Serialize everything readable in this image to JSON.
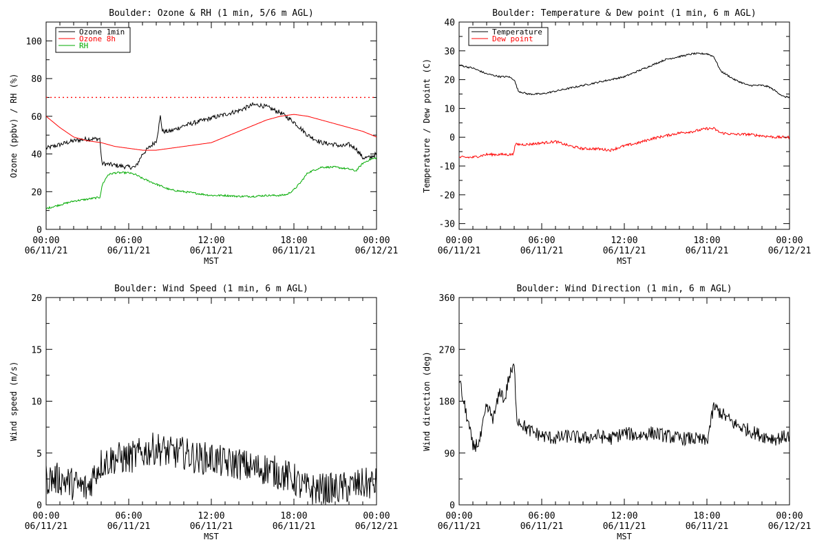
{
  "chart_data": [
    {
      "type": "line",
      "title": "Boulder: Ozone & RH (1 min, 5/6 m AGL)",
      "xlabel": "MST",
      "ylabel": "Ozone (ppbv) / RH (%)",
      "xlim": [
        0,
        24
      ],
      "ylim": [
        0,
        110
      ],
      "yticks": [
        0,
        20,
        40,
        60,
        80,
        100
      ],
      "xticks": [
        0,
        6,
        12,
        18,
        24
      ],
      "xtick_labels": [
        [
          "00:00",
          "06/11/21"
        ],
        [
          "06:00",
          "06/11/21"
        ],
        [
          "12:00",
          "06/11/21"
        ],
        [
          "18:00",
          "06/11/21"
        ],
        [
          "00:00",
          "06/12/21"
        ]
      ],
      "legend_position": "top-left",
      "reference_line": {
        "y": 70,
        "color": "#ff0000",
        "style": "dotted"
      },
      "series": [
        {
          "name": "Ozone 1min",
          "color": "#000000",
          "noise": 1.2,
          "points": [
            [
              0,
              43
            ],
            [
              1,
              45
            ],
            [
              2,
              47
            ],
            [
              3,
              48
            ],
            [
              3.9,
              48
            ],
            [
              4.05,
              35
            ],
            [
              5,
              34
            ],
            [
              6,
              33
            ],
            [
              6.5,
              33
            ],
            [
              7,
              40
            ],
            [
              8,
              47
            ],
            [
              8.15,
              53
            ],
            [
              8.3,
              60
            ],
            [
              8.45,
              52
            ],
            [
              9,
              52
            ],
            [
              10,
              55
            ],
            [
              11,
              57
            ],
            [
              12,
              59
            ],
            [
              13,
              61
            ],
            [
              14,
              63
            ],
            [
              15,
              66
            ],
            [
              15.5,
              66
            ],
            [
              16,
              65
            ],
            [
              17,
              62
            ],
            [
              18,
              57
            ],
            [
              19,
              50
            ],
            [
              20,
              46
            ],
            [
              21,
              45
            ],
            [
              21.5,
              44
            ],
            [
              22,
              45
            ],
            [
              22.5,
              43
            ],
            [
              23,
              38
            ],
            [
              23.5,
              38
            ],
            [
              24,
              40
            ]
          ]
        },
        {
          "name": "Ozone 8h",
          "color": "#ff0000",
          "noise": 0,
          "points": [
            [
              0,
              60
            ],
            [
              1,
              54
            ],
            [
              2,
              49
            ],
            [
              3,
              47
            ],
            [
              4,
              46
            ],
            [
              5,
              44
            ],
            [
              6,
              43
            ],
            [
              7,
              42
            ],
            [
              8,
              42
            ],
            [
              9,
              43
            ],
            [
              10,
              44
            ],
            [
              11,
              45
            ],
            [
              12,
              46
            ],
            [
              13,
              49
            ],
            [
              14,
              52
            ],
            [
              15,
              55
            ],
            [
              16,
              58
            ],
            [
              17,
              60
            ],
            [
              18,
              61
            ],
            [
              19,
              60
            ],
            [
              20,
              58
            ],
            [
              21,
              56
            ],
            [
              22,
              54
            ],
            [
              23,
              52
            ],
            [
              24,
              49
            ]
          ]
        },
        {
          "name": "RH",
          "color": "#00aa00",
          "noise": 0.5,
          "points": [
            [
              0,
              11
            ],
            [
              1,
              13
            ],
            [
              2,
              15
            ],
            [
              3,
              16
            ],
            [
              3.9,
              17
            ],
            [
              4.1,
              24
            ],
            [
              4.5,
              29
            ],
            [
              5,
              30
            ],
            [
              6,
              30
            ],
            [
              6.5,
              29
            ],
            [
              7,
              27
            ],
            [
              8,
              24
            ],
            [
              9,
              21
            ],
            [
              10,
              20
            ],
            [
              11,
              19
            ],
            [
              12,
              18
            ],
            [
              13,
              18
            ],
            [
              14,
              17.5
            ],
            [
              15,
              17.5
            ],
            [
              16,
              18
            ],
            [
              17,
              18
            ],
            [
              17.5,
              18.5
            ],
            [
              18,
              21
            ],
            [
              18.5,
              25
            ],
            [
              19,
              30
            ],
            [
              20,
              33
            ],
            [
              21,
              33
            ],
            [
              22,
              32
            ],
            [
              22.5,
              31
            ],
            [
              23,
              35
            ],
            [
              23.5,
              37
            ],
            [
              24,
              38
            ]
          ]
        }
      ]
    },
    {
      "type": "line",
      "title": "Boulder: Temperature & Dew point (1 min, 6 m AGL)",
      "xlabel": "MST",
      "ylabel": "Temperature / Dew point (C)",
      "xlim": [
        0,
        24
      ],
      "ylim": [
        -32,
        40
      ],
      "yticks": [
        -30,
        -20,
        -10,
        0,
        10,
        20,
        30,
        40
      ],
      "xticks": [
        0,
        6,
        12,
        18,
        24
      ],
      "xtick_labels": [
        [
          "00:00",
          "06/11/21"
        ],
        [
          "06:00",
          "06/11/21"
        ],
        [
          "12:00",
          "06/11/21"
        ],
        [
          "18:00",
          "06/11/21"
        ],
        [
          "00:00",
          "06/12/21"
        ]
      ],
      "legend_position": "top-left",
      "series": [
        {
          "name": "Temperature",
          "color": "#000000",
          "noise": 0.3,
          "points": [
            [
              0,
              25
            ],
            [
              1,
              24
            ],
            [
              2,
              22
            ],
            [
              3,
              21
            ],
            [
              3.6,
              21
            ],
            [
              4,
              20
            ],
            [
              4.3,
              16
            ],
            [
              5,
              15
            ],
            [
              6,
              15
            ],
            [
              7,
              16
            ],
            [
              8,
              17
            ],
            [
              9,
              18
            ],
            [
              10,
              19
            ],
            [
              11,
              20
            ],
            [
              12,
              21
            ],
            [
              13,
              23
            ],
            [
              14,
              25
            ],
            [
              15,
              27
            ],
            [
              16,
              28
            ],
            [
              17,
              29
            ],
            [
              18,
              29
            ],
            [
              18.5,
              28
            ],
            [
              19,
              23
            ],
            [
              20,
              20
            ],
            [
              21,
              18
            ],
            [
              22,
              18
            ],
            [
              22.5,
              17.5
            ],
            [
              23,
              16
            ],
            [
              23.6,
              14
            ],
            [
              24,
              14
            ]
          ]
        },
        {
          "name": "Dew point",
          "color": "#ff0000",
          "noise": 0.45,
          "points": [
            [
              0,
              -7
            ],
            [
              1,
              -7
            ],
            [
              2,
              -6
            ],
            [
              3,
              -6
            ],
            [
              3.9,
              -6
            ],
            [
              4.1,
              -2.5
            ],
            [
              5,
              -2.5
            ],
            [
              6,
              -2
            ],
            [
              7,
              -1.5
            ],
            [
              8,
              -3
            ],
            [
              9,
              -4
            ],
            [
              10,
              -4
            ],
            [
              11,
              -4.5
            ],
            [
              12,
              -3
            ],
            [
              13,
              -2
            ],
            [
              14,
              -0.5
            ],
            [
              15,
              0.5
            ],
            [
              16,
              1.5
            ],
            [
              17,
              2
            ],
            [
              18,
              3
            ],
            [
              18.5,
              3
            ],
            [
              19,
              1.5
            ],
            [
              20,
              1
            ],
            [
              21,
              1
            ],
            [
              22,
              0.5
            ],
            [
              23,
              0
            ],
            [
              24,
              0
            ]
          ]
        }
      ]
    },
    {
      "type": "line",
      "title": "Boulder: Wind Speed (1 min, 6 m AGL)",
      "xlabel": "MST",
      "ylabel": "Wind speed (m/s)",
      "xlim": [
        0,
        24
      ],
      "ylim": [
        0,
        20
      ],
      "yticks": [
        0,
        5,
        10,
        15,
        20
      ],
      "xticks": [
        0,
        6,
        12,
        18,
        24
      ],
      "xtick_labels": [
        [
          "00:00",
          "06/11/21"
        ],
        [
          "06:00",
          "06/11/21"
        ],
        [
          "12:00",
          "06/11/21"
        ],
        [
          "18:00",
          "06/11/21"
        ],
        [
          "00:00",
          "06/12/21"
        ]
      ],
      "series": [
        {
          "name": "",
          "color": "#000000",
          "noise": 1.6,
          "floor": 0,
          "points": [
            [
              0,
              2.5
            ],
            [
              1,
              2.5
            ],
            [
              2,
              2
            ],
            [
              3,
              1.5
            ],
            [
              3.5,
              3
            ],
            [
              4,
              4
            ],
            [
              5,
              4.5
            ],
            [
              6,
              4.5
            ],
            [
              7,
              5
            ],
            [
              8,
              5.5
            ],
            [
              9,
              5
            ],
            [
              10,
              5
            ],
            [
              11,
              4.5
            ],
            [
              12,
              4.5
            ],
            [
              13,
              4
            ],
            [
              14,
              4
            ],
            [
              15,
              3.5
            ],
            [
              16,
              3.5
            ],
            [
              17,
              3
            ],
            [
              18,
              2.5
            ],
            [
              18.5,
              1.8
            ],
            [
              19,
              1.5
            ],
            [
              20,
              1.5
            ],
            [
              21,
              1.5
            ],
            [
              22,
              1.7
            ],
            [
              23,
              2
            ],
            [
              24,
              2
            ]
          ]
        }
      ]
    },
    {
      "type": "line",
      "title": "Boulder: Wind Direction (1 min, 6 m AGL)",
      "xlabel": "MST",
      "ylabel": "Wind direction (deg)",
      "xlim": [
        0,
        24
      ],
      "ylim": [
        0,
        360
      ],
      "yticks": [
        0,
        90,
        180,
        270,
        360
      ],
      "xticks": [
        0,
        6,
        12,
        18,
        24
      ],
      "xtick_labels": [
        [
          "00:00",
          "06/11/21"
        ],
        [
          "06:00",
          "06/11/21"
        ],
        [
          "12:00",
          "06/11/21"
        ],
        [
          "18:00",
          "06/11/21"
        ],
        [
          "00:00",
          "06/12/21"
        ]
      ],
      "series": [
        {
          "name": "",
          "color": "#000000",
          "noise": 12,
          "floor": 0,
          "points": [
            [
              0,
              220
            ],
            [
              0.3,
              180
            ],
            [
              0.6,
              150
            ],
            [
              1,
              100
            ],
            [
              1.5,
              110
            ],
            [
              2,
              170
            ],
            [
              2.5,
              150
            ],
            [
              3,
              200
            ],
            [
              3.3,
              180
            ],
            [
              3.6,
              220
            ],
            [
              4,
              240
            ],
            [
              4.2,
              150
            ],
            [
              5,
              130
            ],
            [
              6,
              120
            ],
            [
              7,
              115
            ],
            [
              8,
              120
            ],
            [
              9,
              115
            ],
            [
              10,
              120
            ],
            [
              11,
              115
            ],
            [
              12,
              125
            ],
            [
              13,
              120
            ],
            [
              14,
              125
            ],
            [
              15,
              120
            ],
            [
              16,
              115
            ],
            [
              17,
              115
            ],
            [
              18,
              110
            ],
            [
              18.5,
              170
            ],
            [
              19,
              160
            ],
            [
              20,
              140
            ],
            [
              21,
              130
            ],
            [
              22,
              120
            ],
            [
              23,
              115
            ],
            [
              24,
              120
            ]
          ]
        }
      ]
    }
  ]
}
